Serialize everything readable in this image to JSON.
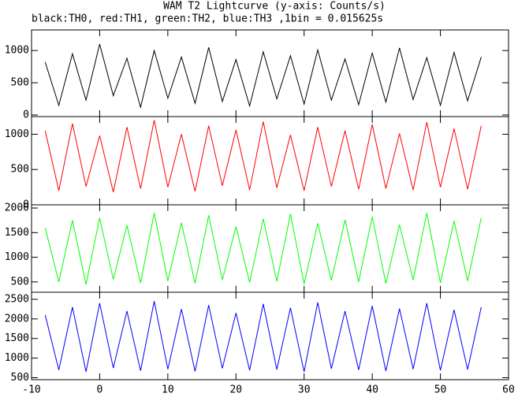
{
  "chart_data": [
    {
      "type": "line",
      "title": "WAM T2 Lightcurve (y-axis: Counts/s)",
      "subtitle": "black:TH0, red:TH1, green:TH2, blue:TH3 ,1bin = 0.015625s",
      "x": [
        -8,
        -6,
        -4,
        -2,
        0,
        2,
        4,
        6,
        8,
        10,
        12,
        14,
        16,
        18,
        20,
        22,
        24,
        26,
        28,
        30,
        32,
        34,
        36,
        38,
        40,
        42,
        44,
        46,
        48,
        50,
        52,
        54,
        56
      ],
      "series": [
        {
          "color": "#000000",
          "values": [
            820,
            150,
            950,
            230,
            1100,
            300,
            880,
            120,
            1000,
            260,
            900,
            180,
            1050,
            210,
            860,
            140,
            980,
            250,
            920,
            170,
            1010,
            230,
            870,
            160,
            960,
            200,
            1040,
            240,
            890,
            150,
            970,
            220,
            900
          ]
        }
      ],
      "xlim": [
        -10,
        60
      ],
      "ylim": [
        -25,
        1320
      ],
      "yticks": [
        0,
        500,
        1000
      ]
    },
    {
      "type": "line",
      "x": [
        -8,
        -6,
        -4,
        -2,
        0,
        2,
        4,
        6,
        8,
        10,
        12,
        14,
        16,
        18,
        20,
        22,
        24,
        26,
        28,
        30,
        32,
        34,
        36,
        38,
        40,
        42,
        44,
        46,
        48,
        50,
        52,
        54,
        56
      ],
      "series": [
        {
          "color": "#ff0000",
          "values": [
            1050,
            200,
            1150,
            260,
            980,
            180,
            1100,
            230,
            1200,
            250,
            1000,
            190,
            1120,
            270,
            1060,
            210,
            1180,
            240,
            990,
            200,
            1100,
            260,
            1050,
            220,
            1140,
            230,
            1010,
            210,
            1170,
            250,
            1080,
            220,
            1120
          ]
        }
      ],
      "xlim": [
        -10,
        60
      ],
      "ylim": [
        0,
        1250
      ],
      "yticks": [
        0,
        500,
        1000
      ]
    },
    {
      "type": "line",
      "x": [
        -8,
        -6,
        -4,
        -2,
        0,
        2,
        4,
        6,
        8,
        10,
        12,
        14,
        16,
        18,
        20,
        22,
        24,
        26,
        28,
        30,
        32,
        34,
        36,
        38,
        40,
        42,
        44,
        46,
        48,
        50,
        52,
        54,
        56
      ],
      "series": [
        {
          "color": "#00ff00",
          "values": [
            1600,
            500,
            1750,
            450,
            1800,
            550,
            1650,
            480,
            1900,
            520,
            1700,
            470,
            1850,
            540,
            1620,
            490,
            1780,
            510,
            1880,
            460,
            1690,
            530,
            1760,
            500,
            1820,
            470,
            1660,
            540,
            1900,
            480,
            1740,
            520,
            1800
          ]
        }
      ],
      "xlim": [
        -10,
        60
      ],
      "ylim": [
        290,
        2065
      ],
      "yticks": [
        500,
        1000,
        1500,
        2000
      ]
    },
    {
      "type": "line",
      "x": [
        -8,
        -6,
        -4,
        -2,
        0,
        2,
        4,
        6,
        8,
        10,
        12,
        14,
        16,
        18,
        20,
        22,
        24,
        26,
        28,
        30,
        32,
        34,
        36,
        38,
        40,
        42,
        44,
        46,
        48,
        50,
        52,
        54,
        56
      ],
      "series": [
        {
          "color": "#0000ff",
          "values": [
            2100,
            700,
            2300,
            650,
            2400,
            750,
            2200,
            680,
            2450,
            720,
            2250,
            660,
            2350,
            740,
            2150,
            690,
            2380,
            710,
            2280,
            650,
            2420,
            730,
            2200,
            700,
            2330,
            670,
            2260,
            720,
            2400,
            690,
            2230,
            710,
            2300
          ]
        }
      ],
      "xlim": [
        -10,
        60
      ],
      "ylim": [
        450,
        2680
      ],
      "yticks": [
        500,
        1000,
        1500,
        2000,
        2500
      ],
      "xticks": [
        -10,
        0,
        10,
        20,
        30,
        40,
        50,
        60
      ]
    }
  ]
}
